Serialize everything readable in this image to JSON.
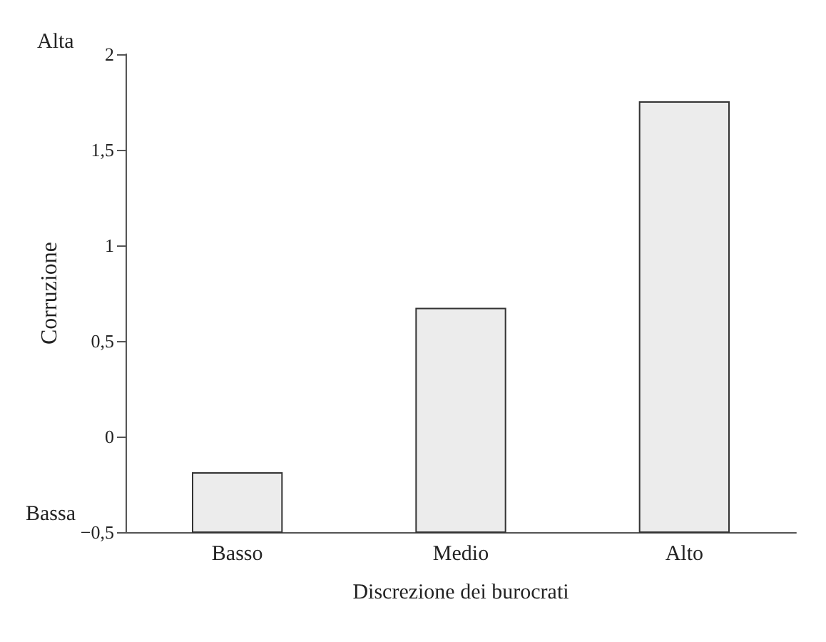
{
  "chart_data": {
    "type": "bar",
    "categories": [
      "Basso",
      "Medio",
      "Alto"
    ],
    "values": [
      0.31,
      1.17,
      2.25
    ],
    "base": [
      -0.5,
      -0.5,
      -0.5
    ],
    "color": "#ececec",
    "xlabel": "Discrezione dei burocrati",
    "ylabel": "Corruzione",
    "ylim": [
      -0.5,
      2
    ],
    "yticks": [
      {
        "value": -0.5,
        "label": "−0,5"
      },
      {
        "value": 0,
        "label": "0"
      },
      {
        "value": 0.5,
        "label": "0,5"
      },
      {
        "value": 1,
        "label": "1"
      },
      {
        "value": 1.5,
        "label": "1,5"
      },
      {
        "value": 2,
        "label": "2"
      }
    ],
    "annotations": [
      "Alta",
      "Bassa"
    ],
    "grid": false
  }
}
